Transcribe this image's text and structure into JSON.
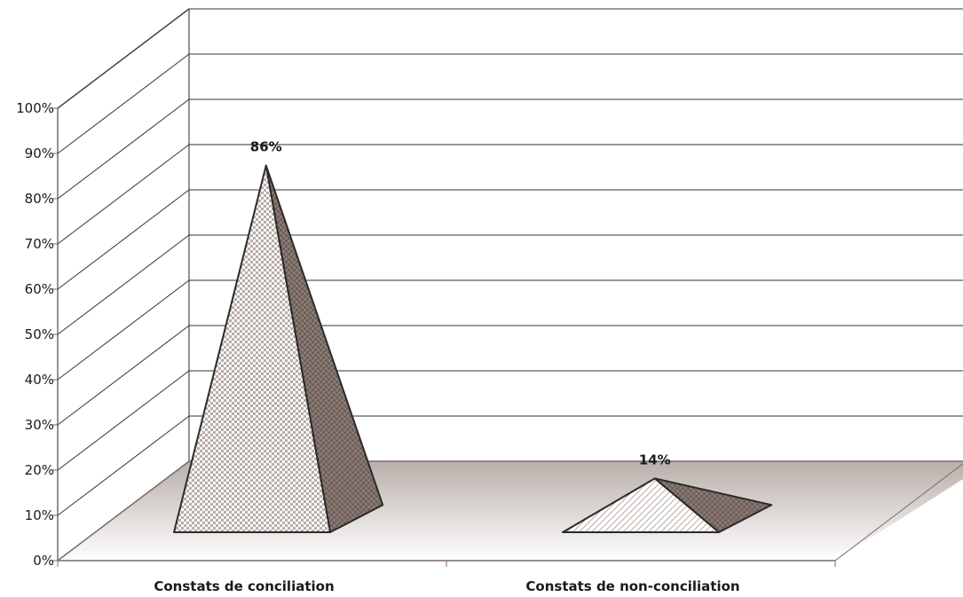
{
  "chart_data": {
    "type": "bar",
    "subtype": "3d-pyramid",
    "categories": [
      "Constats de conciliation",
      "Constats de non-conciliation"
    ],
    "series": [
      {
        "values": [
          86,
          14
        ]
      }
    ],
    "data_labels": [
      "86%",
      "14%"
    ],
    "ylim": [
      0,
      100
    ],
    "y_ticks": [
      "0%",
      "10%",
      "20%",
      "30%",
      "40%",
      "50%",
      "60%",
      "70%",
      "80%",
      "90%",
      "100%"
    ],
    "grid": true,
    "legend": "none",
    "colors": {
      "front_face": "#c8bcb6",
      "side_face": "#6e5f5a",
      "floor_top": "#b9afaa",
      "floor_bottom": "#ffffff",
      "lines": "#7a6a66",
      "grid": "#333333"
    }
  }
}
